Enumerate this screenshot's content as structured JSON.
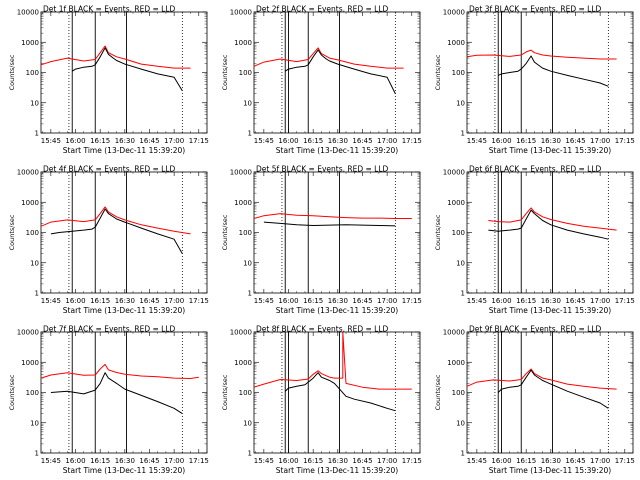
{
  "layout": {
    "rows": 3,
    "cols": 3
  },
  "shared": {
    "ylabel": "Counts/sec",
    "xlabel": "Start Time (13-Dec-11 15:39:20)",
    "x_ticks": [
      "15:45",
      "16:00",
      "16:15",
      "16:30",
      "16:45",
      "17:00",
      "17:15"
    ],
    "y_ticks": [
      "1",
      "10",
      "100",
      "1000",
      "10000"
    ],
    "colors": {
      "events": "#000000",
      "lld": "#ff0000",
      "axes": "#000000"
    }
  },
  "chart_data": [
    {
      "type": "line",
      "title": "Det 1f BLACK = Events, RED = LLD",
      "xlabel": "Start Time (13-Dec-11 15:39:20)",
      "ylabel": "Counts/sec",
      "xlim": [
        "15:39",
        "17:20"
      ],
      "ylim": [
        1,
        10000
      ],
      "yscale": "log",
      "dotted_vlines": [
        "15:56",
        "17:05"
      ],
      "solid_vlines": [
        "15:58",
        "16:12",
        "16:31"
      ],
      "series": [
        {
          "name": "BLACK = Events",
          "color": "#000000",
          "x": [
            "15:58",
            "16:00",
            "16:05",
            "16:10",
            "16:12",
            "16:15",
            "16:18",
            "16:20",
            "16:23",
            "16:25",
            "16:30",
            "16:40",
            "16:50",
            "17:00",
            "17:05"
          ],
          "y": [
            110,
            130,
            150,
            160,
            180,
            330,
            650,
            400,
            300,
            250,
            190,
            130,
            90,
            70,
            25
          ]
        },
        {
          "name": "RED = LLD",
          "color": "#ff0000",
          "x": [
            "15:39",
            "15:45",
            "15:55",
            "16:05",
            "16:12",
            "16:15",
            "16:18",
            "16:20",
            "16:25",
            "16:30",
            "16:40",
            "16:50",
            "17:00",
            "17:10"
          ],
          "y": [
            180,
            230,
            300,
            240,
            270,
            450,
            750,
            450,
            330,
            280,
            190,
            160,
            140,
            140
          ]
        }
      ]
    },
    {
      "type": "line",
      "title": "Det 2f BLACK = Events, RED = LLD",
      "xlabel": "Start Time (13-Dec-11 15:39:20)",
      "ylabel": "Counts/sec",
      "xlim": [
        "15:39",
        "17:20"
      ],
      "ylim": [
        1,
        10000
      ],
      "yscale": "log",
      "dotted_vlines": [
        "15:56",
        "17:05"
      ],
      "solid_vlines": [
        "15:58",
        "16:00",
        "16:12",
        "16:31"
      ],
      "series": [
        {
          "name": "BLACK = Events",
          "color": "#000000",
          "x": [
            "15:58",
            "16:00",
            "16:05",
            "16:10",
            "16:12",
            "16:15",
            "16:18",
            "16:20",
            "16:23",
            "16:25",
            "16:30",
            "16:40",
            "16:50",
            "17:00",
            "17:05"
          ],
          "y": [
            110,
            130,
            150,
            160,
            180,
            330,
            560,
            380,
            280,
            240,
            190,
            130,
            90,
            70,
            20
          ]
        },
        {
          "name": "RED = LLD",
          "color": "#ff0000",
          "x": [
            "15:39",
            "15:45",
            "15:55",
            "16:05",
            "16:12",
            "16:15",
            "16:18",
            "16:20",
            "16:25",
            "16:30",
            "16:40",
            "16:50",
            "17:00",
            "17:10"
          ],
          "y": [
            160,
            220,
            280,
            230,
            270,
            420,
            650,
            420,
            300,
            260,
            190,
            160,
            140,
            140
          ]
        }
      ]
    },
    {
      "type": "line",
      "title": "Det 3f BLACK = Events, RED = LLD",
      "xlabel": "Start Time (13-Dec-11 15:39:20)",
      "ylabel": "Counts/sec",
      "xlim": [
        "15:39",
        "17:20"
      ],
      "ylim": [
        1,
        10000
      ],
      "yscale": "log",
      "dotted_vlines": [
        "15:56",
        "17:05"
      ],
      "solid_vlines": [
        "15:58",
        "16:00",
        "16:12",
        "16:31"
      ],
      "series": [
        {
          "name": "BLACK = Events",
          "color": "#000000",
          "x": [
            "15:58",
            "16:00",
            "16:05",
            "16:10",
            "16:12",
            "16:15",
            "16:18",
            "16:20",
            "16:25",
            "16:30",
            "16:40",
            "16:50",
            "17:00",
            "17:05"
          ],
          "y": [
            80,
            90,
            100,
            110,
            130,
            200,
            350,
            220,
            140,
            110,
            80,
            60,
            45,
            35
          ]
        },
        {
          "name": "RED = LLD",
          "color": "#ff0000",
          "x": [
            "15:39",
            "15:45",
            "15:55",
            "16:05",
            "16:12",
            "16:15",
            "16:18",
            "16:20",
            "16:25",
            "16:30",
            "16:40",
            "16:50",
            "17:00",
            "17:10"
          ],
          "y": [
            330,
            370,
            380,
            340,
            380,
            480,
            550,
            450,
            380,
            350,
            320,
            300,
            280,
            280
          ]
        }
      ]
    },
    {
      "type": "line",
      "title": "Det 4f BLACK = Events, RED = LLD",
      "xlabel": "Start Time (13-Dec-11 15:39:20)",
      "ylabel": "Counts/sec",
      "xlim": [
        "15:39",
        "17:20"
      ],
      "ylim": [
        1,
        10000
      ],
      "yscale": "log",
      "dotted_vlines": [
        "15:56",
        "17:05"
      ],
      "solid_vlines": [
        "15:58",
        "16:12",
        "16:31"
      ],
      "series": [
        {
          "name": "BLACK = Events",
          "color": "#000000",
          "x": [
            "15:45",
            "15:50",
            "15:58",
            "16:05",
            "16:10",
            "16:12",
            "16:15",
            "16:18",
            "16:20",
            "16:25",
            "16:30",
            "16:40",
            "16:50",
            "17:00",
            "17:05"
          ],
          "y": [
            90,
            100,
            110,
            120,
            130,
            150,
            300,
            600,
            420,
            280,
            220,
            140,
            90,
            60,
            20
          ]
        },
        {
          "name": "RED = LLD",
          "color": "#ff0000",
          "x": [
            "15:39",
            "15:45",
            "15:55",
            "16:05",
            "16:12",
            "16:15",
            "16:18",
            "16:20",
            "16:25",
            "16:30",
            "16:40",
            "16:50",
            "17:00",
            "17:10"
          ],
          "y": [
            160,
            220,
            260,
            230,
            260,
            420,
            700,
            480,
            330,
            260,
            180,
            140,
            110,
            90
          ]
        }
      ]
    },
    {
      "type": "line",
      "title": "Det 5f BLACK = Events, RED = LLD",
      "xlabel": "Start Time (13-Dec-11 15:39:20)",
      "ylabel": "Counts/sec",
      "xlim": [
        "15:39",
        "17:20"
      ],
      "ylim": [
        1,
        10000
      ],
      "yscale": "log",
      "dotted_vlines": [
        "15:56",
        "17:05"
      ],
      "solid_vlines": [
        "15:58",
        "16:12",
        "16:31"
      ],
      "series": [
        {
          "name": "BLACK = Events",
          "color": "#000000",
          "x": [
            "15:45",
            "15:55",
            "16:05",
            "16:15",
            "16:25",
            "16:35",
            "16:45",
            "16:55",
            "17:05"
          ],
          "y": [
            220,
            200,
            180,
            170,
            175,
            180,
            175,
            170,
            165
          ]
        },
        {
          "name": "RED = LLD",
          "color": "#ff0000",
          "x": [
            "15:39",
            "15:45",
            "15:55",
            "16:05",
            "16:15",
            "16:25",
            "16:35",
            "16:45",
            "16:55",
            "17:05",
            "17:15"
          ],
          "y": [
            290,
            360,
            420,
            370,
            360,
            330,
            310,
            300,
            300,
            290,
            290
          ]
        }
      ]
    },
    {
      "type": "line",
      "title": "Det 6f BLACK = Events, RED = LLD",
      "xlabel": "Start Time (13-Dec-11 15:39:20)",
      "ylabel": "Counts/sec",
      "xlim": [
        "15:39",
        "17:20"
      ],
      "ylim": [
        1,
        10000
      ],
      "yscale": "log",
      "dotted_vlines": [
        "15:56",
        "17:05"
      ],
      "solid_vlines": [
        "15:58",
        "16:00",
        "16:12",
        "16:31"
      ],
      "series": [
        {
          "name": "BLACK = Events",
          "color": "#000000",
          "x": [
            "15:52",
            "15:58",
            "16:05",
            "16:10",
            "16:12",
            "16:15",
            "16:18",
            "16:20",
            "16:25",
            "16:30",
            "16:40",
            "16:50",
            "17:00",
            "17:05"
          ],
          "y": [
            120,
            110,
            120,
            130,
            140,
            280,
            550,
            420,
            250,
            180,
            120,
            90,
            70,
            60
          ]
        },
        {
          "name": "RED = LLD",
          "color": "#ff0000",
          "x": [
            "15:52",
            "15:58",
            "16:05",
            "16:12",
            "16:15",
            "16:18",
            "16:20",
            "16:25",
            "16:30",
            "16:40",
            "16:50",
            "17:00",
            "17:10"
          ],
          "y": [
            250,
            230,
            220,
            260,
            420,
            650,
            480,
            330,
            270,
            200,
            160,
            140,
            120
          ]
        }
      ]
    },
    {
      "type": "line",
      "title": "Det 7f BLACK = Events, RED = LLD",
      "xlabel": "Start Time (13-Dec-11 15:39:20)",
      "ylabel": "Counts/sec",
      "xlim": [
        "15:39",
        "17:20"
      ],
      "ylim": [
        1,
        10000
      ],
      "yscale": "log",
      "dotted_vlines": [
        "15:56",
        "17:05"
      ],
      "solid_vlines": [
        "15:58",
        "16:12",
        "16:31"
      ],
      "series": [
        {
          "name": "BLACK = Events",
          "color": "#000000",
          "x": [
            "15:45",
            "15:55",
            "16:05",
            "16:12",
            "16:15",
            "16:18",
            "16:20",
            "16:25",
            "16:30",
            "16:40",
            "16:50",
            "17:00",
            "17:05"
          ],
          "y": [
            100,
            110,
            90,
            120,
            200,
            450,
            300,
            200,
            130,
            80,
            50,
            30,
            20
          ]
        },
        {
          "name": "RED = LLD",
          "color": "#ff0000",
          "x": [
            "15:39",
            "15:45",
            "15:55",
            "16:05",
            "16:12",
            "16:15",
            "16:18",
            "16:20",
            "16:25",
            "16:30",
            "16:40",
            "16:50",
            "17:00",
            "17:10",
            "17:15"
          ],
          "y": [
            300,
            380,
            450,
            370,
            380,
            600,
            850,
            560,
            460,
            400,
            350,
            330,
            300,
            290,
            320
          ]
        }
      ]
    },
    {
      "type": "line",
      "title": "Det 8f BLACK = Events, RED = LLD",
      "xlabel": "Start Time (13-Dec-11 15:39:20)",
      "ylabel": "Counts/sec",
      "xlim": [
        "15:39",
        "17:20"
      ],
      "ylim": [
        1,
        10000
      ],
      "yscale": "log",
      "dotted_vlines": [
        "15:56",
        "17:05"
      ],
      "solid_vlines": [
        "15:58",
        "16:00",
        "16:12",
        "16:31"
      ],
      "series": [
        {
          "name": "BLACK = Events",
          "color": "#000000",
          "x": [
            "15:58",
            "16:00",
            "16:05",
            "16:10",
            "16:15",
            "16:18",
            "16:20",
            "16:25",
            "16:28",
            "16:35",
            "16:40",
            "16:50",
            "17:00",
            "17:05"
          ],
          "y": [
            110,
            140,
            160,
            180,
            300,
            450,
            320,
            250,
            200,
            75,
            60,
            45,
            30,
            25
          ]
        },
        {
          "name": "RED = LLD",
          "color": "#ff0000",
          "x": [
            "15:39",
            "15:45",
            "15:55",
            "16:05",
            "16:12",
            "16:15",
            "16:18",
            "16:20",
            "16:25",
            "16:28",
            "16:33",
            "16:33",
            "16:35",
            "16:45",
            "16:55",
            "17:05",
            "17:15"
          ],
          "y": [
            150,
            190,
            270,
            250,
            280,
            400,
            520,
            420,
            320,
            300,
            300,
            10000,
            200,
            150,
            130,
            130,
            130
          ]
        }
      ]
    },
    {
      "type": "line",
      "title": "Det 9f BLACK = Events, RED = LLD",
      "xlabel": "Start Time (13-Dec-11 15:39:20)",
      "ylabel": "Counts/sec",
      "xlim": [
        "15:39",
        "17:20"
      ],
      "ylim": [
        1,
        10000
      ],
      "yscale": "log",
      "dotted_vlines": [
        "15:56",
        "17:05"
      ],
      "solid_vlines": [
        "15:58",
        "16:00",
        "16:12",
        "16:31"
      ],
      "series": [
        {
          "name": "BLACK = Events",
          "color": "#000000",
          "x": [
            "15:58",
            "16:00",
            "16:05",
            "16:10",
            "16:12",
            "16:15",
            "16:18",
            "16:20",
            "16:25",
            "16:30",
            "16:40",
            "16:50",
            "17:00",
            "17:05"
          ],
          "y": [
            100,
            130,
            150,
            160,
            180,
            320,
            550,
            380,
            250,
            190,
            110,
            70,
            45,
            30
          ]
        },
        {
          "name": "RED = LLD",
          "color": "#ff0000",
          "x": [
            "15:39",
            "15:45",
            "15:55",
            "16:05",
            "16:12",
            "16:15",
            "16:18",
            "16:20",
            "16:25",
            "16:30",
            "16:40",
            "16:50",
            "17:00",
            "17:10"
          ],
          "y": [
            160,
            220,
            260,
            240,
            270,
            420,
            600,
            420,
            300,
            260,
            190,
            160,
            140,
            130
          ]
        }
      ]
    }
  ]
}
